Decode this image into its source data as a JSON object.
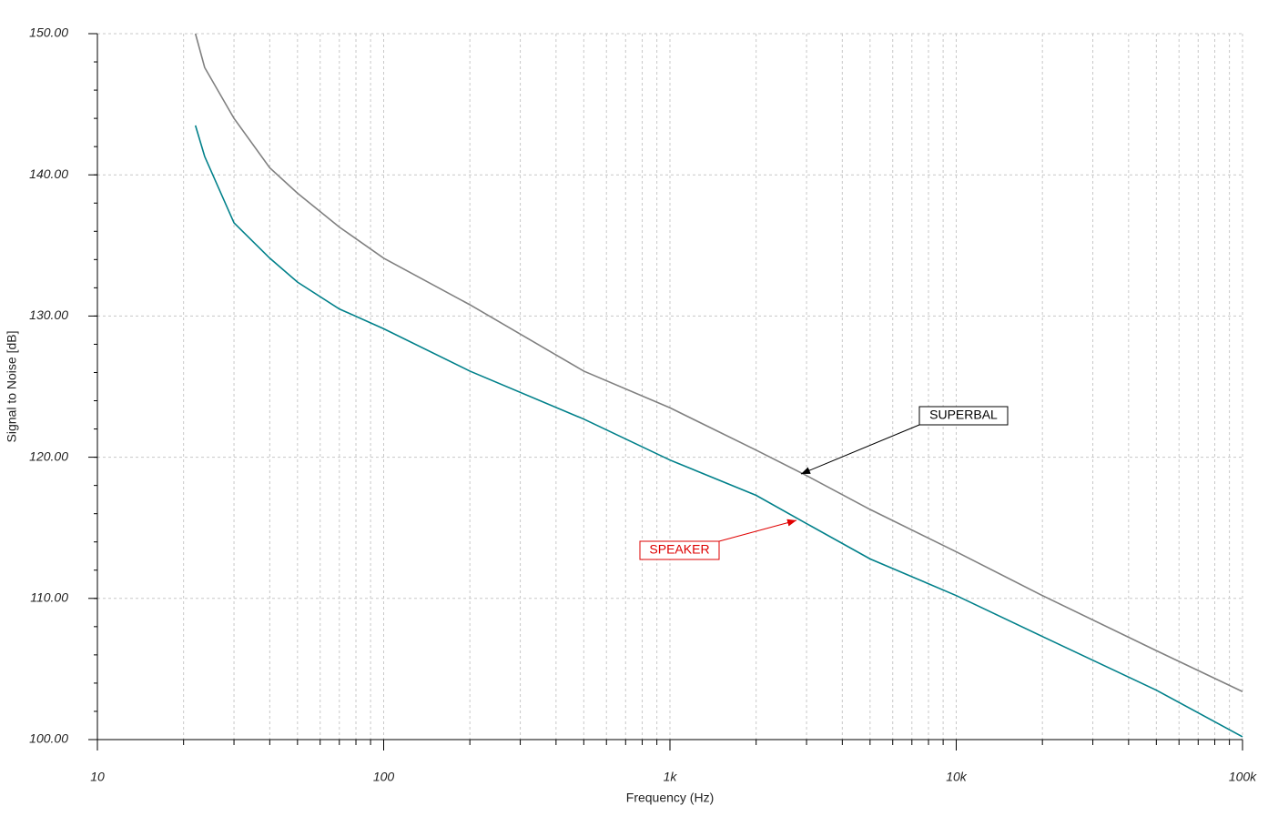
{
  "chart_data": {
    "type": "line",
    "xlabel": "Frequency (Hz)",
    "ylabel": "Signal to Noise [dB]",
    "xscale": "log",
    "grid": true,
    "minor_grid": true,
    "xlim": [
      10,
      100000
    ],
    "xticks": [
      10,
      100,
      {
        "value": 1000,
        "label": "1k"
      },
      {
        "value": 10000,
        "label": "10k"
      },
      {
        "value": 100000,
        "label": "100k"
      }
    ],
    "ylim": [
      100,
      150
    ],
    "yticks": [
      {
        "value": 100,
        "label": "100.00"
      },
      {
        "value": 110,
        "label": "110.00"
      },
      {
        "value": 120,
        "label": "120.00"
      },
      {
        "value": 130,
        "label": "130.00"
      },
      {
        "value": 140,
        "label": "140.00"
      },
      {
        "value": 150,
        "label": "150.00"
      }
    ],
    "x": [
      22,
      23.7,
      30,
      40,
      50,
      70,
      100,
      200,
      500,
      1000,
      2000,
      3000,
      5000,
      10000,
      20000,
      50000,
      100000
    ],
    "series": [
      {
        "name": "SUPERBAL",
        "color": "#808080",
        "values": [
          150,
          147.6,
          144.0,
          140.5,
          138.7,
          136.3,
          134.1,
          130.8,
          126.1,
          123.5,
          120.5,
          118.7,
          116.3,
          113.3,
          110.2,
          106.3,
          103.4
        ]
      },
      {
        "name": "SPEAKER",
        "color": "#00808a",
        "values": [
          143.5,
          141.3,
          136.6,
          134.1,
          132.4,
          130.5,
          129.1,
          126.1,
          122.7,
          119.8,
          117.3,
          115.3,
          112.8,
          110.2,
          107.3,
          103.5,
          100.2
        ]
      }
    ]
  }
}
